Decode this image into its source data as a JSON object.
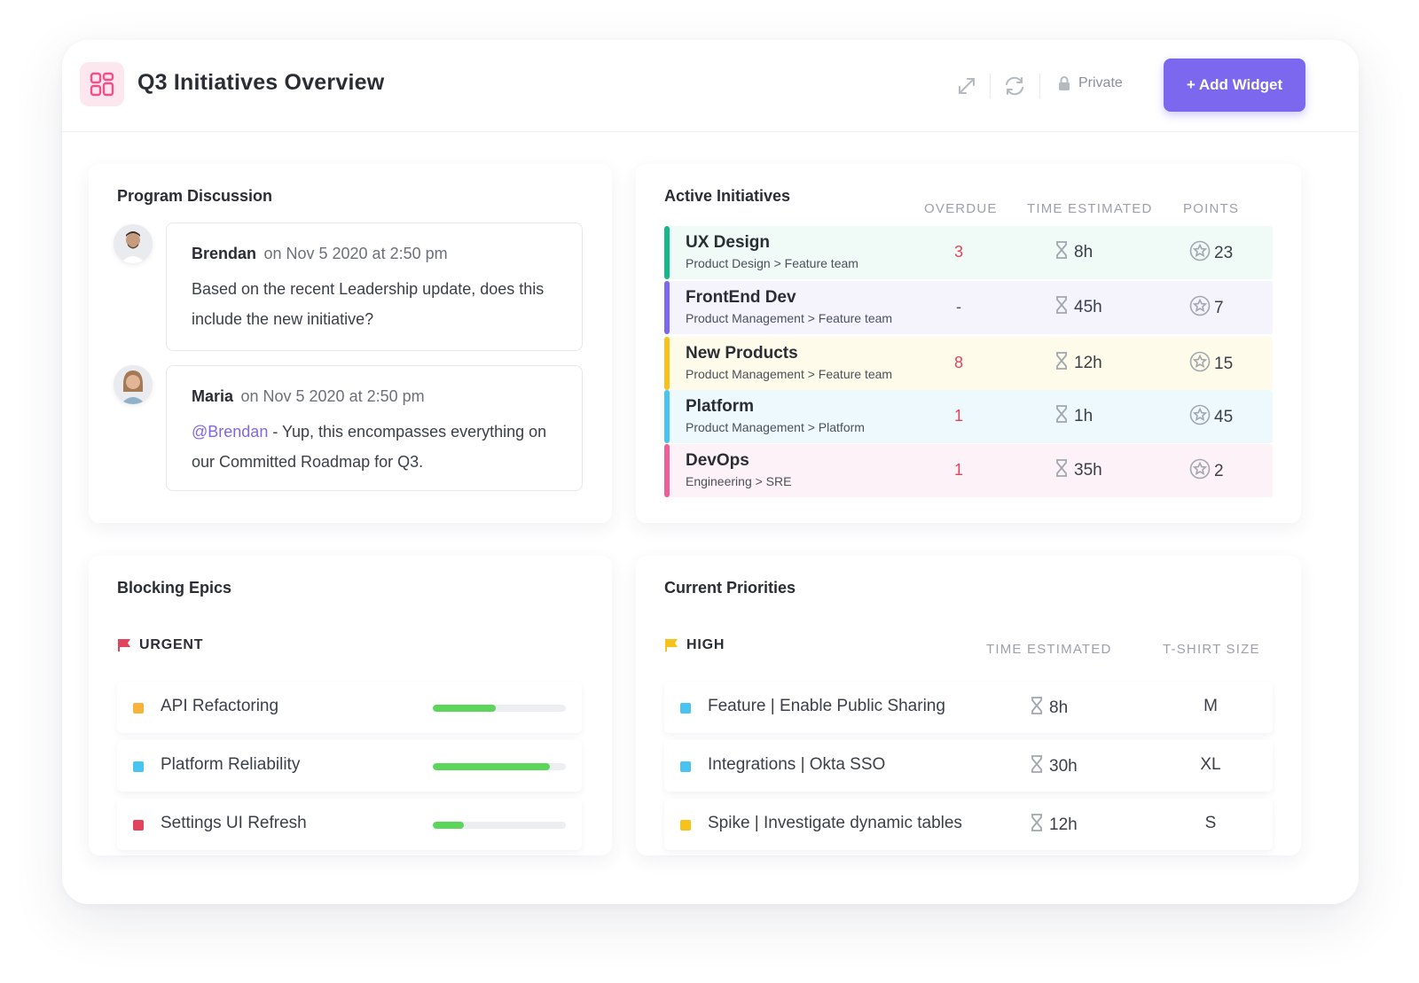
{
  "header": {
    "title": "Q3 Initiatives Overview",
    "app_icon": "dashboard-grid-icon",
    "private_label": "Private",
    "add_widget_label": "+ Add Widget",
    "accent_color": "#7b68ee"
  },
  "discussion": {
    "title": "Program Discussion",
    "comments": [
      {
        "author": "Brendan",
        "meta": "on Nov 5 2020 at 2:50 pm",
        "text": "Based on the recent Leadership update, does this include the new initiative?"
      },
      {
        "author": "Maria",
        "meta": "on Nov 5 2020 at 2:50 pm",
        "mention": "@Brendan",
        "text": " - Yup, this encompasses everything on our Committed Roadmap for Q3."
      }
    ]
  },
  "initiatives": {
    "title": "Active Initiatives",
    "columns": {
      "overdue": "OVERDUE",
      "time": "TIME ESTIMATED",
      "points": "POINTS"
    },
    "rows": [
      {
        "name": "UX Design",
        "path": "Product Design > Feature team",
        "overdue": "3",
        "time": "8h",
        "points": "23",
        "color": "#14b88a",
        "bg": "#f0faf6"
      },
      {
        "name": "FrontEnd Dev",
        "path": "Product Management > Feature team",
        "overdue": "-",
        "time": "45h",
        "points": "7",
        "color": "#7b68ee",
        "bg": "#f5f4fd"
      },
      {
        "name": "New Products",
        "path": "Product Management > Feature team",
        "overdue": "8",
        "time": "12h",
        "points": "15",
        "color": "#f8c21d",
        "bg": "#fffbea"
      },
      {
        "name": "Platform",
        "path": "Product Management > Platform",
        "overdue": "1",
        "time": "1h",
        "points": "45",
        "color": "#49c3f0",
        "bg": "#eef9fd"
      },
      {
        "name": "DevOps",
        "path": "Engineering > SRE",
        "overdue": "1",
        "time": "35h",
        "points": "2",
        "color": "#ee5e99",
        "bg": "#fdf2f7"
      }
    ]
  },
  "blocking": {
    "title": "Blocking Epics",
    "group_label": "URGENT",
    "group_color": "#e2445c",
    "epics": [
      {
        "name": "API Refactoring",
        "progress": 0.47,
        "color": "#f8b33c"
      },
      {
        "name": "Platform Reliability",
        "progress": 0.88,
        "color": "#49c3f0"
      },
      {
        "name": "Settings UI Refresh",
        "progress": 0.23,
        "color": "#e2445c"
      }
    ]
  },
  "priorities": {
    "title": "Current Priorities",
    "group_label": "HIGH",
    "group_color": "#f8c21d",
    "columns": {
      "time": "TIME ESTIMATED",
      "size": "T-SHIRT SIZE"
    },
    "items": [
      {
        "name": "Feature | Enable Public Sharing",
        "time": "8h",
        "size": "M",
        "color": "#49c3f0"
      },
      {
        "name": "Integrations | Okta SSO",
        "time": "30h",
        "size": "XL",
        "color": "#49c3f0"
      },
      {
        "name": "Spike | Investigate dynamic tables",
        "time": "12h",
        "size": "S",
        "color": "#f8c21d"
      }
    ]
  }
}
